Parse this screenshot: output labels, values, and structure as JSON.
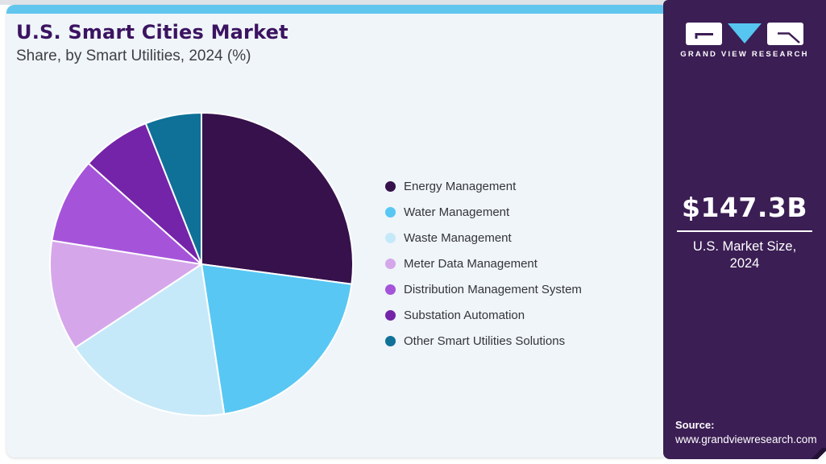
{
  "header": {
    "title": "U.S. Smart Cities Market",
    "subtitle": "Share, by Smart Utilities, 2024 (%)"
  },
  "chart_data": {
    "type": "pie",
    "title": "U.S. Smart Cities Market Share, by Smart Utilities, 2024 (%)",
    "unit": "%",
    "start_angle": "12 o'clock",
    "direction": "clockwise",
    "legend_position": "right",
    "slices": [
      {
        "label": "Energy Management",
        "value": 27.1,
        "color": "#36114B"
      },
      {
        "label": "Water Management",
        "value": 20.5,
        "color": "#58C7F3"
      },
      {
        "label": "Waste Management",
        "value": 18.1,
        "color": "#C6E9F9"
      },
      {
        "label": "Meter Data Management",
        "value": 11.8,
        "color": "#D5A7EA"
      },
      {
        "label": "Distribution Management System",
        "value": 9.1,
        "color": "#A554DA"
      },
      {
        "label": "Substation Automation",
        "value": 7.4,
        "color": "#7424A8"
      },
      {
        "label": "Other Smart Utilities Solutions",
        "value": 6.0,
        "color": "#0F7198"
      }
    ]
  },
  "sidebar": {
    "logo_text": "GRAND VIEW RESEARCH",
    "market_size": "$147.3B",
    "market_label_line1": "U.S. Market Size,",
    "market_label_line2": "2024",
    "source_label": "Source:",
    "source_url": "www.grandviewresearch.com"
  },
  "theme": {
    "topbar_color": "#61C6EE",
    "card_background": "#EFF5F9",
    "title_color": "#3C1361",
    "subtitle_color": "#3F3F44",
    "legend_text_color": "#35353A",
    "sidebar_background": "#3B1E54",
    "logo_triangle_color": "#56C5F0",
    "divider_color": "#FFFFFF"
  }
}
